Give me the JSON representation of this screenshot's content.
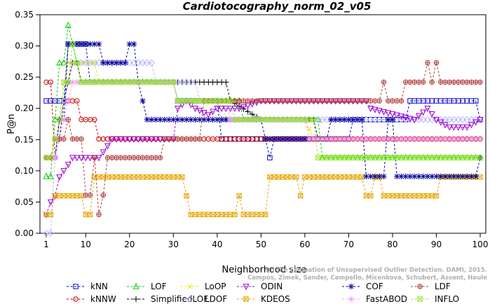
{
  "chart_data": {
    "type": "line",
    "title": "Cardiotocography_norm_02_v05",
    "xlabel": "Neighborhood size",
    "ylabel": "P@n",
    "xlim": [
      1,
      100
    ],
    "ylim": [
      0,
      0.35
    ],
    "x_ticks": [
      1,
      10,
      20,
      30,
      40,
      50,
      60,
      70,
      80,
      90,
      100
    ],
    "y_ticks": [
      "0.00",
      "0.05",
      "0.10",
      "0.15",
      "0.20",
      "0.25",
      "0.30",
      "0.35"
    ],
    "credit": [
      "Campos, Zimek, Sander, Campello, Micenkova, Schubert, Assent, Houle",
      "On the Evaluation of Unsupervised Outlier Detection. DAMI, 2015."
    ],
    "legend_placement": "bottom",
    "series": [
      {
        "name": "kNN",
        "color": "#0000cc",
        "marker": "square",
        "points": [
          [
            1,
            0.212
          ],
          [
            5,
            0.212
          ],
          [
            6,
            0.303
          ],
          [
            10,
            0.303
          ],
          [
            11,
            0.242
          ],
          [
            30,
            0.242
          ],
          [
            31,
            0.212
          ],
          [
            38,
            0.212
          ],
          [
            40,
            0.212
          ],
          [
            41,
            0.151
          ],
          [
            51,
            0.151
          ],
          [
            52,
            0.121
          ],
          [
            53,
            0.151
          ],
          [
            70,
            0.151
          ],
          [
            71,
            0.182
          ],
          [
            83,
            0.182
          ],
          [
            84,
            0.212
          ],
          [
            99,
            0.212
          ],
          [
            100,
            0.182
          ]
        ]
      },
      {
        "name": "kNNW",
        "color": "#cc0000",
        "marker": "circle",
        "points": [
          [
            1,
            0.242
          ],
          [
            2,
            0.242
          ],
          [
            3,
            0.121
          ],
          [
            4,
            0.182
          ],
          [
            5,
            0.212
          ],
          [
            6,
            0.212
          ],
          [
            7,
            0.212
          ],
          [
            8,
            0.212
          ],
          [
            9,
            0.182
          ],
          [
            11,
            0.182
          ],
          [
            12,
            0.182
          ],
          [
            13,
            0.151
          ],
          [
            14,
            0.151
          ],
          [
            36,
            0.151
          ],
          [
            37,
            0.151
          ],
          [
            60,
            0.151
          ],
          [
            61,
            0.151
          ],
          [
            78,
            0.151
          ],
          [
            79,
            0.151
          ],
          [
            100,
            0.151
          ]
        ]
      },
      {
        "name": "LOF",
        "color": "#00cc00",
        "marker": "triangle-up",
        "points": [
          [
            1,
            0.091
          ],
          [
            2,
            0.091
          ],
          [
            3,
            0.182
          ],
          [
            4,
            0.273
          ],
          [
            5,
            0.273
          ],
          [
            6,
            0.333
          ],
          [
            7,
            0.303
          ],
          [
            8,
            0.273
          ],
          [
            9,
            0.242
          ],
          [
            30,
            0.242
          ],
          [
            31,
            0.212
          ],
          [
            38,
            0.212
          ],
          [
            39,
            0.212
          ],
          [
            40,
            0.212
          ],
          [
            41,
            0.212
          ],
          [
            45,
            0.212
          ],
          [
            46,
            0.182
          ],
          [
            63,
            0.182
          ],
          [
            64,
            0.121
          ],
          [
            100,
            0.121
          ]
        ]
      },
      {
        "name": "SimplifiedLOF",
        "color": "#000000",
        "marker": "plus",
        "points": [
          [
            1,
            0.121
          ],
          [
            2,
            0.121
          ],
          [
            3,
            0.121
          ],
          [
            4,
            0.151
          ],
          [
            5,
            0.212
          ],
          [
            6,
            0.242
          ],
          [
            7,
            0.273
          ],
          [
            8,
            0.273
          ],
          [
            9,
            0.242
          ],
          [
            40,
            0.242
          ],
          [
            41,
            0.242
          ],
          [
            42,
            0.242
          ],
          [
            43,
            0.212
          ],
          [
            50,
            0.182
          ],
          [
            62,
            0.182
          ],
          [
            63,
            0.151
          ],
          [
            100,
            0.151
          ]
        ]
      },
      {
        "name": "LoOP",
        "color": "#e6e600",
        "marker": "cross",
        "points": [
          [
            1,
            0.121
          ],
          [
            2,
            0.121
          ],
          [
            3,
            0.121
          ],
          [
            4,
            0.182
          ],
          [
            5,
            0.242
          ],
          [
            6,
            0.273
          ],
          [
            12,
            0.273
          ],
          [
            13,
            0.242
          ],
          [
            30,
            0.242
          ],
          [
            31,
            0.212
          ],
          [
            40,
            0.212
          ],
          [
            41,
            0.212
          ],
          [
            42,
            0.182
          ],
          [
            50,
            0.182
          ],
          [
            60,
            0.182
          ],
          [
            62,
            0.151
          ],
          [
            100,
            0.151
          ]
        ]
      },
      {
        "name": "LDOF",
        "color": "#b3b3ff",
        "marker": "diamond",
        "points": [
          [
            1,
            0.0
          ],
          [
            2,
            0.0
          ],
          [
            3,
            0.121
          ],
          [
            4,
            0.182
          ],
          [
            5,
            0.212
          ],
          [
            6,
            0.242
          ],
          [
            7,
            0.273
          ],
          [
            25,
            0.273
          ],
          [
            26,
            0.242
          ],
          [
            35,
            0.242
          ],
          [
            36,
            0.212
          ],
          [
            40,
            0.212
          ],
          [
            41,
            0.182
          ],
          [
            100,
            0.182
          ]
        ]
      },
      {
        "name": "ODIN",
        "color": "#9900cc",
        "marker": "triangle-down",
        "points": [
          [
            1,
            0.03
          ],
          [
            2,
            0.05
          ],
          [
            3,
            0.06
          ],
          [
            4,
            0.09
          ],
          [
            5,
            0.1
          ],
          [
            6,
            0.11
          ],
          [
            7,
            0.121
          ],
          [
            8,
            0.121
          ],
          [
            9,
            0.121
          ],
          [
            13,
            0.121
          ],
          [
            14,
            0.13
          ],
          [
            15,
            0.14
          ],
          [
            16,
            0.151
          ],
          [
            30,
            0.151
          ],
          [
            31,
            0.2
          ],
          [
            33,
            0.212
          ],
          [
            35,
            0.2
          ],
          [
            38,
            0.19
          ],
          [
            40,
            0.2
          ],
          [
            45,
            0.2
          ],
          [
            50,
            0.212
          ],
          [
            62,
            0.212
          ],
          [
            74,
            0.212
          ],
          [
            75,
            0.2
          ],
          [
            85,
            0.182
          ],
          [
            88,
            0.2
          ],
          [
            90,
            0.182
          ],
          [
            93,
            0.17
          ],
          [
            97,
            0.17
          ],
          [
            100,
            0.182
          ]
        ]
      },
      {
        "name": "KDEOS",
        "color": "#e6a500",
        "marker": "square-x",
        "points": [
          [
            1,
            0.03
          ],
          [
            2,
            0.03
          ],
          [
            3,
            0.06
          ],
          [
            4,
            0.06
          ],
          [
            9,
            0.06
          ],
          [
            10,
            0.03
          ],
          [
            11,
            0.03
          ],
          [
            12,
            0.09
          ],
          [
            13,
            0.09
          ],
          [
            14,
            0.09
          ],
          [
            15,
            0.09
          ],
          [
            16,
            0.09
          ],
          [
            32,
            0.09
          ],
          [
            33,
            0.06
          ],
          [
            34,
            0.03
          ],
          [
            44,
            0.03
          ],
          [
            45,
            0.06
          ],
          [
            46,
            0.03
          ],
          [
            50,
            0.03
          ],
          [
            51,
            0.03
          ],
          [
            52,
            0.09
          ],
          [
            58,
            0.09
          ],
          [
            59,
            0.06
          ],
          [
            60,
            0.09
          ],
          [
            70,
            0.09
          ],
          [
            71,
            0.09
          ],
          [
            72,
            0.09
          ],
          [
            73,
            0.09
          ],
          [
            74,
            0.06
          ],
          [
            75,
            0.06
          ],
          [
            76,
            0.09
          ],
          [
            77,
            0.09
          ],
          [
            78,
            0.06
          ],
          [
            90,
            0.06
          ],
          [
            91,
            0.09
          ],
          [
            100,
            0.09
          ]
        ]
      },
      {
        "name": "COF",
        "color": "#000099",
        "marker": "asterisk",
        "points": [
          [
            1,
            0.121
          ],
          [
            2,
            0.121
          ],
          [
            3,
            0.121
          ],
          [
            4,
            0.182
          ],
          [
            5,
            0.182
          ],
          [
            6,
            0.303
          ],
          [
            13,
            0.303
          ],
          [
            14,
            0.273
          ],
          [
            19,
            0.273
          ],
          [
            20,
            0.303
          ],
          [
            21,
            0.303
          ],
          [
            22,
            0.242
          ],
          [
            24,
            0.182
          ],
          [
            40,
            0.182
          ],
          [
            50,
            0.182
          ],
          [
            51,
            0.151
          ],
          [
            65,
            0.151
          ],
          [
            66,
            0.182
          ],
          [
            73,
            0.182
          ],
          [
            74,
            0.091
          ],
          [
            78,
            0.091
          ],
          [
            79,
            0.182
          ],
          [
            80,
            0.182
          ],
          [
            81,
            0.091
          ],
          [
            99,
            0.091
          ],
          [
            100,
            0.121
          ]
        ]
      },
      {
        "name": "FastABOD",
        "color": "#ff99ff",
        "marker": "star",
        "points": [
          [
            1,
            0.121
          ],
          [
            2,
            0.121
          ],
          [
            3,
            0.121
          ],
          [
            4,
            0.151
          ],
          [
            5,
            0.182
          ],
          [
            6,
            0.212
          ],
          [
            7,
            0.242
          ],
          [
            8,
            0.242
          ],
          [
            30,
            0.242
          ],
          [
            31,
            0.212
          ],
          [
            40,
            0.212
          ],
          [
            41,
            0.212
          ],
          [
            42,
            0.212
          ],
          [
            43,
            0.182
          ],
          [
            60,
            0.182
          ],
          [
            61,
            0.151
          ],
          [
            100,
            0.151
          ]
        ]
      },
      {
        "name": "LDF",
        "color": "#b33c3c",
        "marker": "circle-plus",
        "points": [
          [
            1,
            0.121
          ],
          [
            2,
            0.121
          ],
          [
            3,
            0.151
          ],
          [
            4,
            0.151
          ],
          [
            5,
            0.151
          ],
          [
            6,
            0.182
          ],
          [
            7,
            0.151
          ],
          [
            8,
            0.151
          ],
          [
            9,
            0.151
          ],
          [
            10,
            0.061
          ],
          [
            11,
            0.061
          ],
          [
            12,
            0.121
          ],
          [
            13,
            0.03
          ],
          [
            14,
            0.061
          ],
          [
            15,
            0.121
          ],
          [
            16,
            0.121
          ],
          [
            17,
            0.121
          ],
          [
            18,
            0.121
          ],
          [
            19,
            0.121
          ],
          [
            20,
            0.121
          ],
          [
            21,
            0.121
          ],
          [
            22,
            0.121
          ],
          [
            23,
            0.121
          ],
          [
            24,
            0.121
          ],
          [
            25,
            0.121
          ],
          [
            26,
            0.121
          ],
          [
            27,
            0.121
          ],
          [
            28,
            0.151
          ],
          [
            36,
            0.151
          ],
          [
            37,
            0.212
          ],
          [
            77,
            0.212
          ],
          [
            78,
            0.242
          ],
          [
            79,
            0.212
          ],
          [
            82,
            0.212
          ],
          [
            83,
            0.242
          ],
          [
            87,
            0.242
          ],
          [
            88,
            0.273
          ],
          [
            89,
            0.242
          ],
          [
            90,
            0.273
          ],
          [
            91,
            0.242
          ],
          [
            100,
            0.242
          ]
        ]
      },
      {
        "name": "INFLO",
        "color": "#99e633",
        "marker": "hourglass",
        "points": [
          [
            1,
            0.121
          ],
          [
            2,
            0.121
          ],
          [
            3,
            0.151
          ],
          [
            4,
            0.182
          ],
          [
            5,
            0.242
          ],
          [
            6,
            0.242
          ],
          [
            7,
            0.303
          ],
          [
            8,
            0.273
          ],
          [
            9,
            0.242
          ],
          [
            30,
            0.242
          ],
          [
            31,
            0.212
          ],
          [
            43,
            0.212
          ],
          [
            44,
            0.182
          ],
          [
            62,
            0.182
          ],
          [
            63,
            0.121
          ],
          [
            100,
            0.121
          ]
        ]
      }
    ]
  }
}
